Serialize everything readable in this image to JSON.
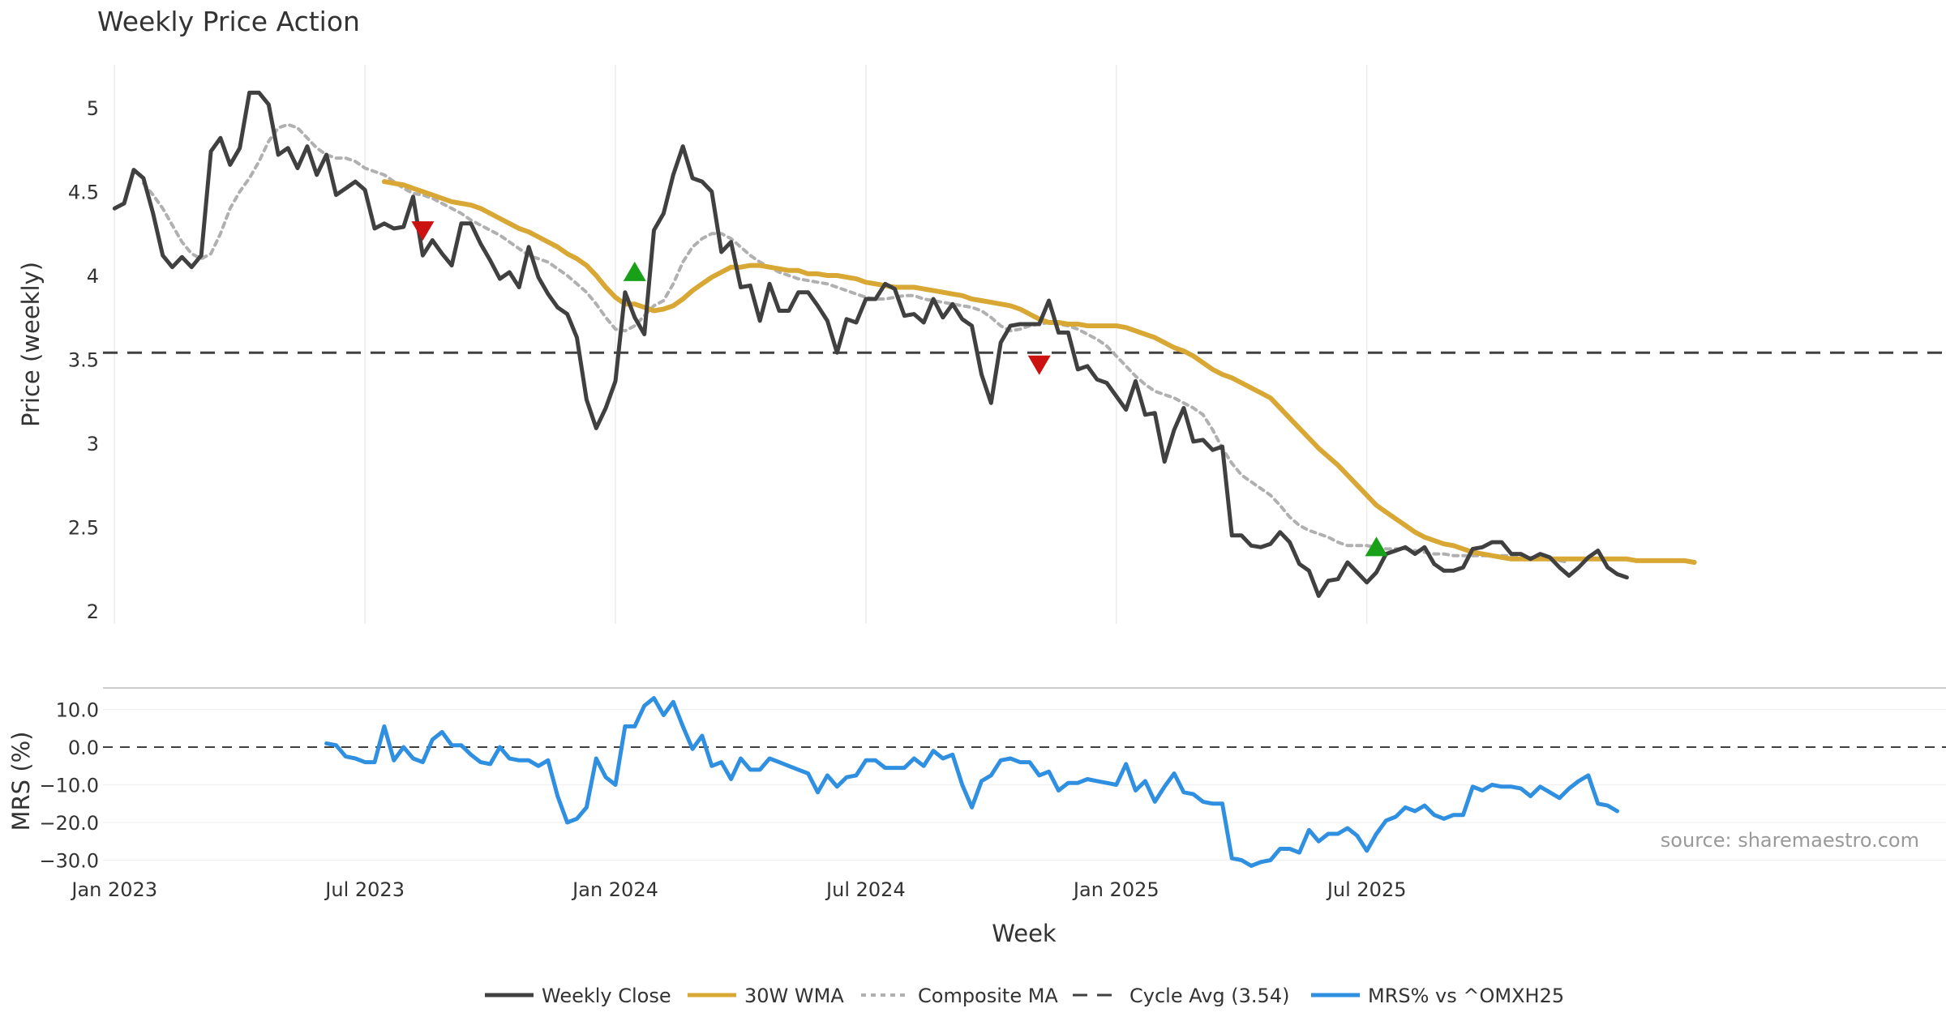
{
  "chart_data": {
    "type": "line",
    "title": "Weekly Price Action",
    "source_note": "source: sharemaestro.com",
    "xlabel": "Week",
    "x_ticks": [
      "Jan 2023",
      "Jul 2023",
      "Jan 2024",
      "Jul 2024",
      "Jan 2025",
      "Jul 2025"
    ],
    "price_panel": {
      "ylabel": "Price (weekly)",
      "ylim": [
        1.9,
        5.25
      ],
      "y_ticks": [
        "5",
        "4.5",
        "4",
        "3.5",
        "3",
        "2.5",
        "2"
      ],
      "y_tick_values": [
        5,
        4.5,
        4,
        3.5,
        3,
        2.5,
        2
      ],
      "cycle_avg": 3.54,
      "series": [
        {
          "name": "Weekly Close",
          "color": "#404040",
          "start_week": 0,
          "values": [
            4.4,
            4.43,
            4.63,
            4.58,
            4.37,
            4.12,
            4.05,
            4.11,
            4.05,
            4.12,
            4.74,
            4.82,
            4.66,
            4.76,
            5.09,
            5.09,
            5.02,
            4.72,
            4.76,
            4.64,
            4.77,
            4.6,
            4.72,
            4.48,
            4.52,
            4.56,
            4.51,
            4.28,
            4.31,
            4.28,
            4.29,
            4.47,
            4.12,
            4.21,
            4.13,
            4.06,
            4.31,
            4.31,
            4.19,
            4.09,
            3.98,
            4.02,
            3.93,
            4.17,
            3.99,
            3.89,
            3.81,
            3.77,
            3.63,
            3.26,
            3.09,
            3.21,
            3.37,
            3.9,
            3.75,
            3.65,
            4.27,
            4.37,
            4.6,
            4.77,
            4.58,
            4.56,
            4.5,
            4.14,
            4.2,
            3.93,
            3.94,
            3.73,
            3.95,
            3.79,
            3.79,
            3.9,
            3.9,
            3.82,
            3.73,
            3.54,
            3.74,
            3.72,
            3.86,
            3.86,
            3.95,
            3.92,
            3.76,
            3.77,
            3.72,
            3.86,
            3.75,
            3.83,
            3.74,
            3.7,
            3.41,
            3.24,
            3.6,
            3.7,
            3.71,
            3.71,
            3.71,
            3.85,
            3.66,
            3.66,
            3.44,
            3.46,
            3.38,
            3.36,
            3.28,
            3.2,
            3.37,
            3.17,
            3.18,
            2.89,
            3.08,
            3.21,
            3.01,
            3.02,
            2.96,
            2.98,
            2.45,
            2.45,
            2.39,
            2.38,
            2.4,
            2.47,
            2.41,
            2.28,
            2.24,
            2.09,
            2.18,
            2.19,
            2.29,
            2.23,
            2.17,
            2.23,
            2.34,
            2.36,
            2.38,
            2.34,
            2.38,
            2.28,
            2.24,
            2.24,
            2.26,
            2.37,
            2.38,
            2.41,
            2.41,
            2.34,
            2.34,
            2.31,
            2.34,
            2.32,
            2.26,
            2.21,
            2.26,
            2.32,
            2.36,
            2.26,
            2.22,
            2.2
          ]
        },
        {
          "name": "30W WMA",
          "color": "#d9a733",
          "start_week": 28,
          "values": [
            4.56,
            4.55,
            4.54,
            4.52,
            4.5,
            4.48,
            4.46,
            4.44,
            4.43,
            4.42,
            4.4,
            4.37,
            4.34,
            4.31,
            4.28,
            4.26,
            4.23,
            4.2,
            4.17,
            4.13,
            4.1,
            4.06,
            4.0,
            3.93,
            3.87,
            3.83,
            3.83,
            3.81,
            3.79,
            3.8,
            3.82,
            3.86,
            3.91,
            3.95,
            3.99,
            4.02,
            4.05,
            4.05,
            4.06,
            4.06,
            4.05,
            4.04,
            4.03,
            4.03,
            4.01,
            4.01,
            4.0,
            4.0,
            3.99,
            3.98,
            3.96,
            3.95,
            3.94,
            3.93,
            3.93,
            3.93,
            3.92,
            3.91,
            3.9,
            3.89,
            3.88,
            3.86,
            3.85,
            3.84,
            3.83,
            3.82,
            3.8,
            3.77,
            3.74,
            3.72,
            3.72,
            3.71,
            3.71,
            3.7,
            3.7,
            3.7,
            3.7,
            3.69,
            3.67,
            3.65,
            3.63,
            3.6,
            3.57,
            3.55,
            3.52,
            3.48,
            3.44,
            3.41,
            3.39,
            3.36,
            3.33,
            3.3,
            3.27,
            3.21,
            3.15,
            3.09,
            3.03,
            2.97,
            2.92,
            2.87,
            2.81,
            2.75,
            2.69,
            2.63,
            2.59,
            2.55,
            2.51,
            2.47,
            2.44,
            2.42,
            2.4,
            2.39,
            2.37,
            2.35,
            2.34,
            2.33,
            2.32,
            2.31,
            2.31,
            2.31,
            2.31,
            2.31,
            2.31,
            2.31,
            2.31,
            2.31,
            2.31,
            2.31,
            2.31,
            2.31,
            2.3,
            2.3,
            2.3,
            2.3,
            2.3,
            2.3,
            2.29
          ]
        },
        {
          "name": "Composite MA",
          "color": "#b0b0b0",
          "start_week": 3,
          "values": [
            4.55,
            4.48,
            4.4,
            4.3,
            4.2,
            4.13,
            4.1,
            4.13,
            4.25,
            4.4,
            4.5,
            4.58,
            4.68,
            4.8,
            4.88,
            4.9,
            4.88,
            4.82,
            4.76,
            4.72,
            4.7,
            4.7,
            4.68,
            4.64,
            4.62,
            4.6,
            4.56,
            4.52,
            4.49,
            4.48,
            4.46,
            4.43,
            4.4,
            4.37,
            4.33,
            4.3,
            4.27,
            4.24,
            4.2,
            4.16,
            4.12,
            4.1,
            4.08,
            4.04,
            4.0,
            3.95,
            3.9,
            3.83,
            3.75,
            3.68,
            3.67,
            3.7,
            3.76,
            3.82,
            3.85,
            3.95,
            4.08,
            4.17,
            4.22,
            4.25,
            4.25,
            4.22,
            4.17,
            4.12,
            4.08,
            4.05,
            4.02,
            4.0,
            3.98,
            3.97,
            3.96,
            3.95,
            3.93,
            3.91,
            3.89,
            3.87,
            3.86,
            3.86,
            3.87,
            3.88,
            3.88,
            3.86,
            3.85,
            3.84,
            3.83,
            3.82,
            3.81,
            3.79,
            3.75,
            3.7,
            3.67,
            3.68,
            3.7,
            3.71,
            3.72,
            3.71,
            3.7,
            3.68,
            3.65,
            3.62,
            3.58,
            3.52,
            3.46,
            3.4,
            3.35,
            3.31,
            3.29,
            3.27,
            3.24,
            3.21,
            3.17,
            3.08,
            2.97,
            2.88,
            2.81,
            2.77,
            2.73,
            2.69,
            2.63,
            2.56,
            2.51,
            2.48,
            2.46,
            2.44,
            2.41,
            2.39,
            2.39,
            2.39,
            2.38,
            2.37,
            2.37,
            2.37,
            2.36,
            2.35,
            2.34,
            2.34,
            2.33,
            2.33,
            2.33,
            2.33,
            2.33,
            2.33,
            2.33,
            2.32,
            2.32,
            2.31,
            2.31,
            2.3,
            2.29
          ]
        }
      ],
      "markers": [
        {
          "type": "sell",
          "week": 32,
          "value": 4.27
        },
        {
          "type": "buy",
          "week": 54,
          "value": 4.02
        },
        {
          "type": "sell",
          "week": 96,
          "value": 3.47
        },
        {
          "type": "buy",
          "week": 131,
          "value": 2.38
        }
      ]
    },
    "mrs_panel": {
      "ylabel": "MRS (%)",
      "ylim": [
        -33,
        17
      ],
      "y_ticks": [
        "10.0",
        "0.0",
        "−10.0",
        "−20.0",
        "−30.0"
      ],
      "y_tick_values": [
        10,
        0,
        -10,
        -20,
        -30
      ],
      "series": [
        {
          "name": "MRS% vs ^OMXH25",
          "color": "#2f8fe0",
          "start_week": 22,
          "values": [
            1.0,
            0.5,
            -2.5,
            -3.0,
            -4.0,
            -4.0,
            5.5,
            -3.5,
            0.0,
            -3.0,
            -4.0,
            2.0,
            4.0,
            0.5,
            0.5,
            -2.0,
            -4.0,
            -4.5,
            0.0,
            -3.0,
            -3.5,
            -3.5,
            -5.0,
            -3.5,
            -13.0,
            -20.0,
            -19.0,
            -16.0,
            -3.0,
            -8.0,
            -10.0,
            5.5,
            5.5,
            11.0,
            13.0,
            8.5,
            12.0,
            5.5,
            -0.5,
            3.0,
            -5.0,
            -4.0,
            -8.5,
            -3.0,
            -6.0,
            -6.0,
            -3.0,
            -4.0,
            -5.0,
            -6.0,
            -7.0,
            -12.0,
            -7.5,
            -10.5,
            -8.0,
            -7.5,
            -3.5,
            -3.5,
            -5.5,
            -5.5,
            -5.5,
            -3.0,
            -5.0,
            -1.0,
            -3.0,
            -2.0,
            -10.0,
            -16.0,
            -9.0,
            -7.5,
            -3.5,
            -3.0,
            -4.0,
            -4.0,
            -7.5,
            -6.5,
            -11.5,
            -9.5,
            -9.5,
            -8.5,
            -9.0,
            -9.5,
            -10.0,
            -4.5,
            -11.5,
            -9.0,
            -14.5,
            -10.5,
            -7.0,
            -12.0,
            -12.5,
            -14.5,
            -15.0,
            -15.0,
            -29.5,
            -30.0,
            -31.5,
            -30.5,
            -30.0,
            -27.0,
            -27.0,
            -28.0,
            -22.0,
            -25.0,
            -23.0,
            -23.0,
            -21.5,
            -23.5,
            -27.5,
            -23.0,
            -19.5,
            -18.5,
            -16.0,
            -17.0,
            -15.5,
            -18.0,
            -19.0,
            -18.0,
            -18.0,
            -10.5,
            -11.5,
            -10.0,
            -10.5,
            -10.5,
            -11.0,
            -13.0,
            -10.5,
            -12.0,
            -13.5,
            -11.0,
            -9.0,
            -7.5,
            -15.0,
            -15.5,
            -17.0
          ]
        }
      ]
    },
    "legend": [
      {
        "label": "Weekly Close",
        "style": "solid",
        "color": "#404040"
      },
      {
        "label": "30W WMA",
        "style": "solid",
        "color": "#d9a733"
      },
      {
        "label": "Composite MA",
        "style": "dotted",
        "color": "#b0b0b0"
      },
      {
        "label": "Cycle Avg (3.54)",
        "style": "dashed",
        "color": "#404040"
      },
      {
        "label": "MRS% vs ^OMXH25",
        "style": "solid",
        "color": "#2f8fe0"
      }
    ],
    "colors": {
      "sell_marker": "#cc1111",
      "buy_marker": "#18a018",
      "cycle_line": "#404040"
    }
  }
}
